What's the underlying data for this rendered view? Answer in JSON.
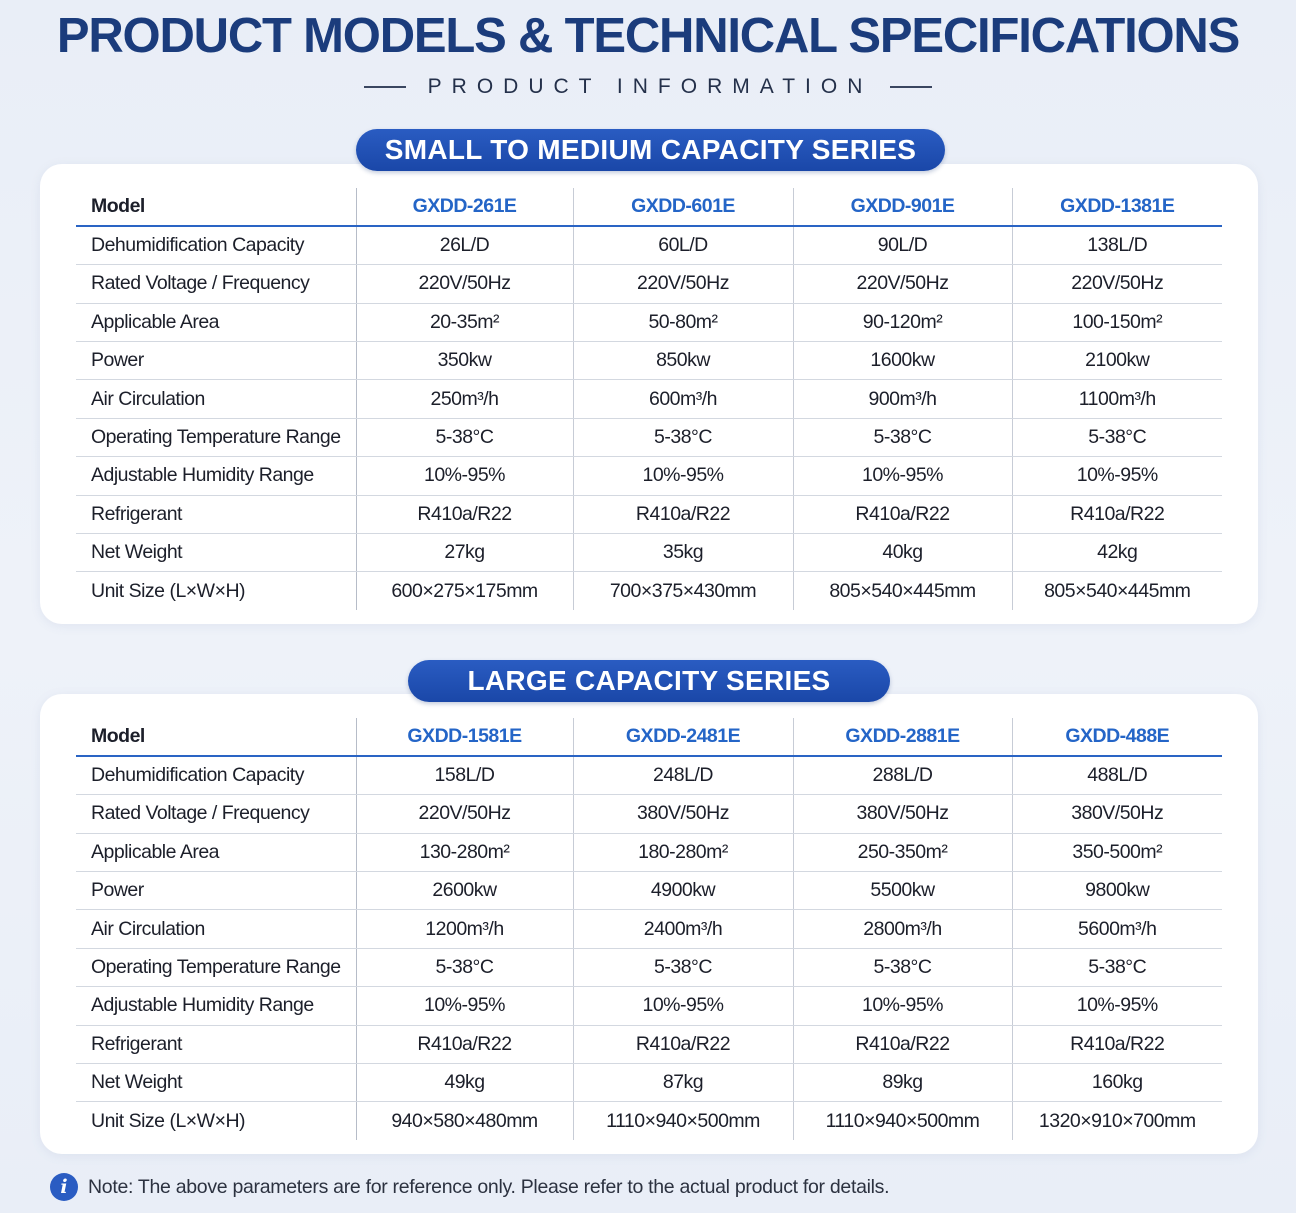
{
  "header": {
    "title": "PRODUCT MODELS & TECHNICAL SPECIFICATIONS",
    "subtitle": "PRODUCT INFORMATION"
  },
  "row_labels": [
    "Dehumidification Capacity",
    "Rated Voltage / Frequency",
    "Applicable Area",
    "Power",
    "Air Circulation",
    "Operating Temperature Range",
    "Adjustable Humidity Range",
    "Refrigerant",
    "Net Weight",
    "Unit Size (L×W×H)"
  ],
  "model_header": "Model",
  "sections": [
    {
      "title": "SMALL TO MEDIUM CAPACITY SERIES",
      "models": [
        "GXDD-261E",
        "GXDD-601E",
        "GXDD-901E",
        "GXDD-1381E"
      ],
      "rows": [
        [
          "26L/D",
          "60L/D",
          "90L/D",
          "138L/D"
        ],
        [
          "220V/50Hz",
          "220V/50Hz",
          "220V/50Hz",
          "220V/50Hz"
        ],
        [
          "20-35m²",
          "50-80m²",
          "90-120m²",
          "100-150m²"
        ],
        [
          "350kw",
          "850kw",
          "1600kw",
          "2100kw"
        ],
        [
          "250m³/h",
          "600m³/h",
          "900m³/h",
          "1100m³/h"
        ],
        [
          "5-38°C",
          "5-38°C",
          "5-38°C",
          "5-38°C"
        ],
        [
          "10%-95%",
          "10%-95%",
          "10%-95%",
          "10%-95%"
        ],
        [
          "R410a/R22",
          "R410a/R22",
          "R410a/R22",
          "R410a/R22"
        ],
        [
          "27kg",
          "35kg",
          "40kg",
          "42kg"
        ],
        [
          "600×275×175mm",
          "700×375×430mm",
          "805×540×445mm",
          "805×540×445mm"
        ]
      ]
    },
    {
      "title": "LARGE CAPACITY SERIES",
      "models": [
        "GXDD-1581E",
        "GXDD-2481E",
        "GXDD-2881E",
        "GXDD-488E"
      ],
      "rows": [
        [
          "158L/D",
          "248L/D",
          "288L/D",
          "488L/D"
        ],
        [
          "220V/50Hz",
          "380V/50Hz",
          "380V/50Hz",
          "380V/50Hz"
        ],
        [
          "130-280m²",
          "180-280m²",
          "250-350m²",
          "350-500m²"
        ],
        [
          "2600kw",
          "4900kw",
          "5500kw",
          "9800kw"
        ],
        [
          "1200m³/h",
          "2400m³/h",
          "2800m³/h",
          "5600m³/h"
        ],
        [
          "5-38°C",
          "5-38°C",
          "5-38°C",
          "5-38°C"
        ],
        [
          "10%-95%",
          "10%-95%",
          "10%-95%",
          "10%-95%"
        ],
        [
          "R410a/R22",
          "R410a/R22",
          "R410a/R22",
          "R410a/R22"
        ],
        [
          "49kg",
          "87kg",
          "89kg",
          "160kg"
        ],
        [
          "940×580×480mm",
          "1110×940×500mm",
          "1110×940×500mm",
          "1320×910×700mm"
        ]
      ]
    }
  ],
  "note": {
    "icon": "info-icon",
    "text": "Note: The above parameters are for reference only. Please refer to the actual product for details."
  },
  "colors": {
    "title": "#1b3c7c",
    "accent": "#2a5cc2",
    "model_text": "#2465c7"
  }
}
